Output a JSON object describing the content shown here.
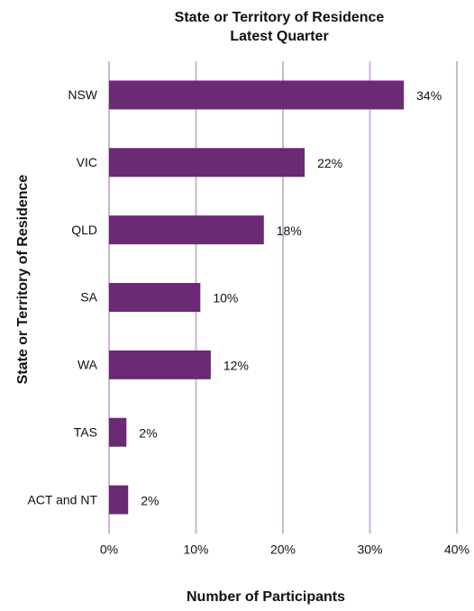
{
  "chart_data": {
    "type": "hbar",
    "title": "State or Territory of Residence",
    "subtitle": "Latest Quarter",
    "xlabel": "Number of Participants",
    "ylabel": "State or Territory of Residence",
    "categories": [
      "NSW",
      "VIC",
      "QLD",
      "SA",
      "WA",
      "TAS",
      "ACT and NT"
    ],
    "values": [
      33.9,
      22.5,
      17.8,
      10.5,
      11.7,
      2.0,
      2.2
    ],
    "value_labels": [
      "34%",
      "22%",
      "18%",
      "10%",
      "12%",
      "2%",
      "2%"
    ],
    "color": "#6a2a74",
    "xlim": [
      0,
      40
    ],
    "xticks": [
      {
        "value": 0,
        "label": "0%"
      },
      {
        "value": 10,
        "label": "10%"
      },
      {
        "value": 20,
        "label": "20%"
      },
      {
        "value": 30,
        "label": "30%"
      },
      {
        "value": 40,
        "label": "40%"
      }
    ],
    "grid": true,
    "grid_color": "#cdb6d3"
  }
}
